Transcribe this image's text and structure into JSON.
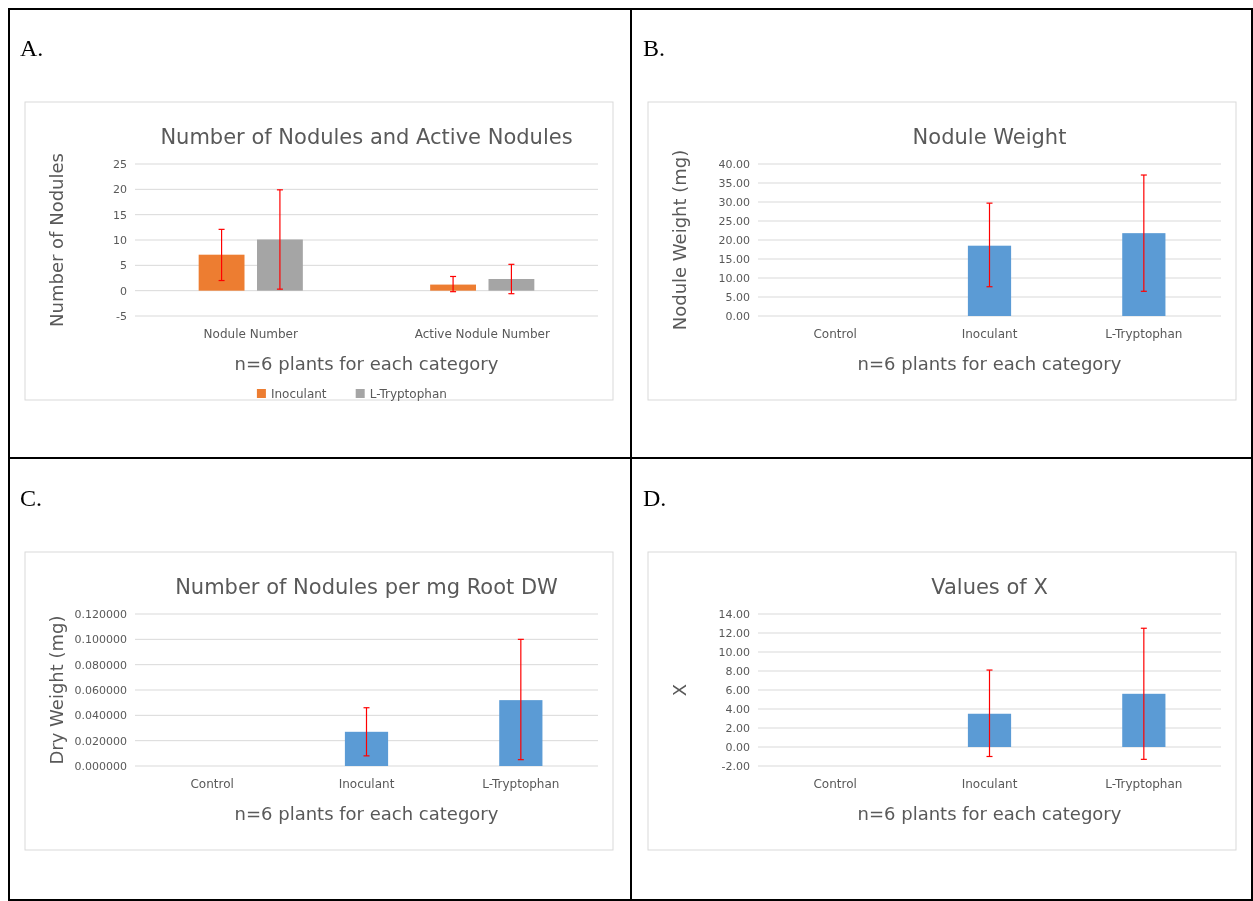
{
  "chart_data": [
    {
      "type": "bar",
      "title": "Number of Nodules and Active Nodules",
      "xlabel": "n=6 plants for each category",
      "ylabel": "Number of Nodules",
      "annotations": [
        "A."
      ],
      "categories": [
        "Nodule Number",
        "Active Nodule Number"
      ],
      "series": [
        {
          "name": "Inoculant",
          "color": "#ed7d31",
          "values": [
            7.1,
            1.2
          ],
          "errors": [
            [
              2,
              12.1
            ],
            [
              -0.2,
              2.8
            ]
          ]
        },
        {
          "name": "L-Tryptophan",
          "color": "#a5a5a5",
          "values": [
            10.1,
            2.3
          ],
          "errors": [
            [
              0.3,
              19.9
            ],
            [
              -0.6,
              5.2
            ]
          ]
        }
      ],
      "ylim": [
        -5,
        25
      ],
      "yticks": [
        -5,
        0,
        5,
        10,
        15,
        20,
        25
      ],
      "grid": "y",
      "legend": "bottom"
    },
    {
      "type": "bar",
      "title": "Nodule Weight",
      "xlabel": "n=6 plants for each category",
      "ylabel": "Nodule Weight (mg)",
      "annotations": [
        "B."
      ],
      "categories": [
        "Control",
        "Inoculant",
        "L-Tryptophan"
      ],
      "series": [
        {
          "color": "#5b9bd5",
          "values": [
            null,
            18.5,
            21.8
          ],
          "errors": [
            null,
            [
              7.7,
              29.7
            ],
            [
              6.5,
              37.1
            ]
          ]
        }
      ],
      "ylim": [
        0,
        40
      ],
      "yticks": [
        {
          "value": 0,
          "label": "0.00"
        },
        {
          "value": 5,
          "label": "5.00"
        },
        {
          "value": 10,
          "label": "10.00"
        },
        {
          "value": 15,
          "label": "15.00"
        },
        {
          "value": 20,
          "label": "20.00"
        },
        {
          "value": 25,
          "label": "25.00"
        },
        {
          "value": 30,
          "label": "30.00"
        },
        {
          "value": 35,
          "label": "35.00"
        },
        {
          "value": 40,
          "label": "40.00"
        }
      ],
      "grid": "y"
    },
    {
      "type": "bar",
      "title": "Number of Nodules per mg Root DW",
      "xlabel": "n=6 plants for each category",
      "ylabel": "Dry Weight (mg)",
      "annotations": [
        "C."
      ],
      "categories": [
        "Control",
        "Inoculant",
        "L-Tryptophan"
      ],
      "series": [
        {
          "color": "#5b9bd5",
          "values": [
            null,
            0.027,
            0.052
          ],
          "errors": [
            null,
            [
              0.008,
              0.046
            ],
            [
              0.005,
              0.1
            ]
          ]
        }
      ],
      "ylim": [
        0,
        0.12
      ],
      "yticks": [
        {
          "value": 0,
          "label": "0.000000"
        },
        {
          "value": 0.02,
          "label": "0.020000"
        },
        {
          "value": 0.04,
          "label": "0.040000"
        },
        {
          "value": 0.06,
          "label": "0.060000"
        },
        {
          "value": 0.08,
          "label": "0.080000"
        },
        {
          "value": 0.1,
          "label": "0.100000"
        },
        {
          "value": 0.12,
          "label": "0.120000"
        }
      ],
      "grid": "y"
    },
    {
      "type": "bar",
      "title": "Values of X",
      "xlabel": "n=6 plants for each category",
      "ylabel": "X",
      "annotations": [
        "D."
      ],
      "categories": [
        "Control",
        "Inoculant",
        "L-Tryptophan"
      ],
      "series": [
        {
          "color": "#5b9bd5",
          "values": [
            null,
            3.5,
            5.6
          ],
          "errors": [
            null,
            [
              -1,
              8.1
            ],
            [
              -1.3,
              12.5
            ]
          ]
        }
      ],
      "ylim": [
        -2,
        14
      ],
      "yticks": [
        {
          "value": -2,
          "label": "-2.00"
        },
        {
          "value": 0,
          "label": "0.00"
        },
        {
          "value": 2,
          "label": "2.00"
        },
        {
          "value": 4,
          "label": "4.00"
        },
        {
          "value": 6,
          "label": "6.00"
        },
        {
          "value": 8,
          "label": "8.00"
        },
        {
          "value": 10,
          "label": "10.00"
        },
        {
          "value": 12,
          "label": "12.00"
        },
        {
          "value": 14,
          "label": "14.00"
        }
      ],
      "grid": "y"
    }
  ]
}
